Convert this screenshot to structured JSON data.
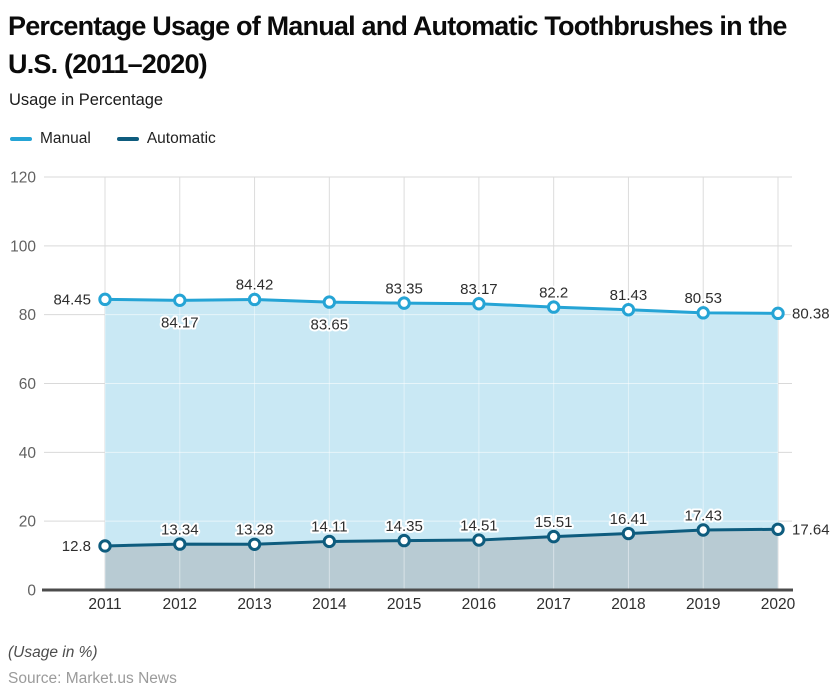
{
  "header": {
    "title": "Percentage Usage of Manual and Automatic Toothbrushes in the U.S. (2011–2020)",
    "subtitle": "Usage in Percentage"
  },
  "footer": {
    "note": "(Usage in %)",
    "source": "Source: Market.us News"
  },
  "chart_data": {
    "type": "area",
    "title": "Percentage Usage of Manual and Automatic Toothbrushes in the U.S. (2011–2020)",
    "subtitle": "Usage in Percentage",
    "categories": [
      "2011",
      "2012",
      "2013",
      "2014",
      "2015",
      "2016",
      "2017",
      "2018",
      "2019",
      "2020"
    ],
    "series": [
      {
        "name": "Manual",
        "values": [
          84.45,
          84.17,
          84.42,
          83.65,
          83.35,
          83.17,
          82.2,
          81.43,
          80.53,
          80.38
        ],
        "color": "#25A4D5",
        "fill": "#C9E8F4",
        "label_positions": [
          "left",
          "below",
          "above",
          "below",
          "above",
          "above",
          "above",
          "above",
          "above",
          "right"
        ]
      },
      {
        "name": "Automatic",
        "values": [
          12.8,
          13.34,
          13.28,
          14.11,
          14.35,
          14.51,
          15.51,
          16.41,
          17.43,
          17.64
        ],
        "color": "#0E5C7E",
        "fill": "#B8CBD3",
        "label_positions": [
          "left",
          "above",
          "above",
          "above",
          "above",
          "above",
          "above",
          "above",
          "above",
          "right"
        ]
      }
    ],
    "xlabel": "",
    "ylabel": "Usage in Percentage",
    "ylim": [
      0,
      120
    ],
    "yticks": [
      0,
      20,
      40,
      60,
      80,
      100,
      120
    ],
    "grid": true,
    "legend_position": "top-left",
    "colors": {
      "grid_line": "#d9d9d9",
      "axis_line": "#4c4c4c",
      "tick_label": "#616161",
      "category_label": "#2e2e2e",
      "data_label": "#2e2e2e"
    }
  }
}
